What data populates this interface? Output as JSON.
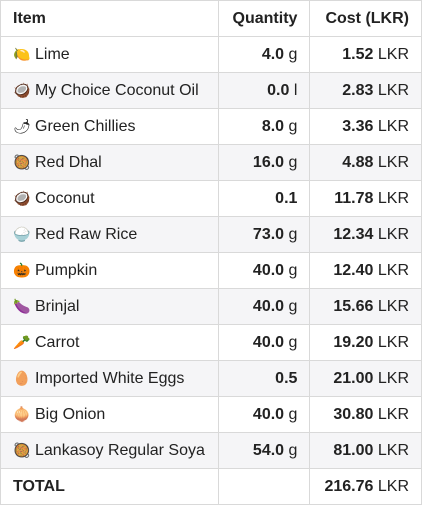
{
  "columns": {
    "item": "Item",
    "quantity": "Quantity",
    "cost": "Cost (LKR)"
  },
  "rows": [
    {
      "icon": "🍋",
      "icon_name": "lime-icon",
      "name": "Lime",
      "qty": "4.0",
      "qty_unit": "g",
      "cost": "1.52",
      "cost_unit": "LKR"
    },
    {
      "icon": "🥥",
      "icon_name": "coconut-icon",
      "name": "My Choice Coconut Oil",
      "qty": "0.0",
      "qty_unit": "l",
      "cost": "2.83",
      "cost_unit": "LKR"
    },
    {
      "icon": "🌶",
      "icon_name": "chili-icon",
      "name": "Green Chillies",
      "qty": "8.0",
      "qty_unit": "g",
      "cost": "3.36",
      "cost_unit": "LKR"
    },
    {
      "icon": "🥘",
      "icon_name": "bowl-icon",
      "name": "Red Dhal",
      "qty": "16.0",
      "qty_unit": "g",
      "cost": "4.88",
      "cost_unit": "LKR"
    },
    {
      "icon": "🥥",
      "icon_name": "coconut-icon",
      "name": "Coconut",
      "qty": "0.1",
      "qty_unit": "",
      "cost": "11.78",
      "cost_unit": "LKR"
    },
    {
      "icon": "🍚",
      "icon_name": "rice-bowl-icon",
      "name": "Red Raw Rice",
      "qty": "73.0",
      "qty_unit": "g",
      "cost": "12.34",
      "cost_unit": "LKR"
    },
    {
      "icon": "🎃",
      "icon_name": "pumpkin-icon",
      "name": "Pumpkin",
      "qty": "40.0",
      "qty_unit": "g",
      "cost": "12.40",
      "cost_unit": "LKR"
    },
    {
      "icon": "🍆",
      "icon_name": "eggplant-icon",
      "name": "Brinjal",
      "qty": "40.0",
      "qty_unit": "g",
      "cost": "15.66",
      "cost_unit": "LKR"
    },
    {
      "icon": "🥕",
      "icon_name": "carrot-icon",
      "name": "Carrot",
      "qty": "40.0",
      "qty_unit": "g",
      "cost": "19.20",
      "cost_unit": "LKR"
    },
    {
      "icon": "🥚",
      "icon_name": "egg-icon",
      "name": "Imported White Eggs",
      "qty": "0.5",
      "qty_unit": "",
      "cost": "21.00",
      "cost_unit": "LKR"
    },
    {
      "icon": "🧅",
      "icon_name": "onion-icon",
      "name": "Big Onion",
      "qty": "40.0",
      "qty_unit": "g",
      "cost": "30.80",
      "cost_unit": "LKR"
    },
    {
      "icon": "🥘",
      "icon_name": "bowl-icon",
      "name": "Lankasoy Regular Soya",
      "qty": "54.0",
      "qty_unit": "g",
      "cost": "81.00",
      "cost_unit": "LKR"
    }
  ],
  "total": {
    "label": "TOTAL",
    "cost": "216.76",
    "cost_unit": "LKR"
  }
}
